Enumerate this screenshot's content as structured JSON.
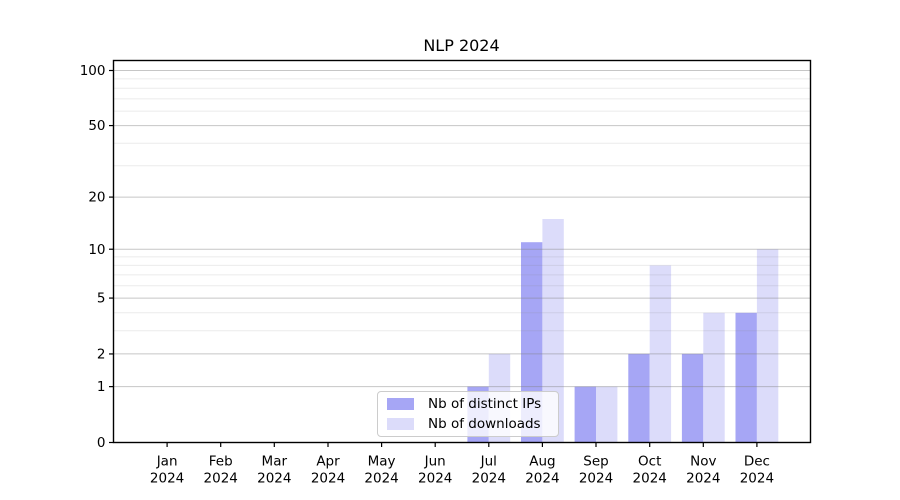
{
  "figure": {
    "title": "NLP 2024",
    "background": "#ffffff"
  },
  "legend": {
    "items": [
      {
        "label": "Nb of distinct IPs",
        "color": "#a6a6f5"
      },
      {
        "label": "Nb of downloads",
        "color": "#dcdcfa"
      }
    ]
  },
  "chart_data": {
    "type": "bar",
    "title": "NLP 2024",
    "categories": [
      "Jan",
      "Feb",
      "Mar",
      "Apr",
      "May",
      "Jun",
      "Jul",
      "Aug",
      "Sep",
      "Oct",
      "Nov",
      "Dec"
    ],
    "year": "2024",
    "series": [
      {
        "name": "Nb of distinct IPs",
        "color": "#a6a6f5",
        "values": [
          0,
          0,
          0,
          0,
          0,
          0,
          1,
          11,
          1,
          2,
          2,
          4
        ]
      },
      {
        "name": "Nb of downloads",
        "color": "#dcdcfa",
        "values": [
          0,
          0,
          0,
          0,
          0,
          0,
          2,
          15,
          1,
          8,
          4,
          10
        ]
      }
    ],
    "xlabel": "",
    "ylabel": "",
    "yscale": "log1p",
    "ylim": [
      0,
      100
    ],
    "y_ticks": [
      0,
      1,
      2,
      5,
      10,
      20,
      50,
      100
    ],
    "y_minor_ticks": [
      3,
      4,
      6,
      7,
      8,
      9,
      30,
      40,
      60,
      70,
      80,
      90
    ],
    "grid": true,
    "grid_over_bars": true,
    "legend_position": "lower-center-inside",
    "bar_group": "side-by-side"
  },
  "colors": {
    "grid_major": "rgba(128,128,128,0.45)",
    "grid_minor": "rgba(128,128,128,0.16)",
    "axis": "#000000"
  }
}
